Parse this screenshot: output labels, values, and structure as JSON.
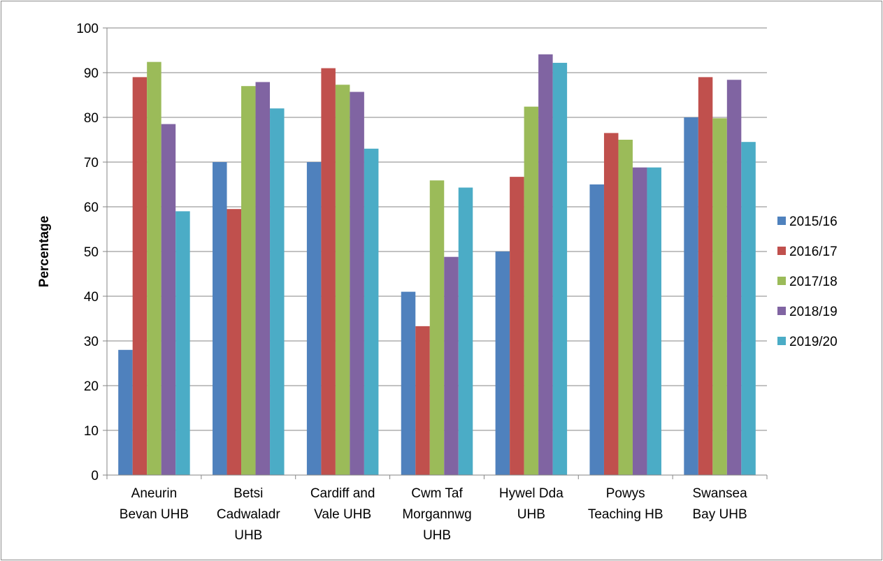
{
  "chart_data": {
    "type": "bar",
    "title": "",
    "xlabel": "",
    "ylabel": "Percentage",
    "ylim": [
      0,
      100
    ],
    "y_ticks": [
      "0",
      "10",
      "20",
      "30",
      "40",
      "50",
      "60",
      "70",
      "80",
      "90",
      "100"
    ],
    "grid": "horizontal",
    "legend_position": "right",
    "categories": [
      [
        "Aneurin",
        "Bevan UHB"
      ],
      [
        "Betsi",
        "Cadwaladr",
        "UHB"
      ],
      [
        "Cardiff and",
        "Vale UHB"
      ],
      [
        "Cwm Taf",
        "Morgannwg",
        "UHB"
      ],
      [
        "Hywel Dda",
        "UHB"
      ],
      [
        "Powys",
        "Teaching HB"
      ],
      [
        "Swansea",
        "Bay UHB"
      ]
    ],
    "series": [
      {
        "name": "2015/16",
        "color": "#4f81bd",
        "values": [
          28,
          70,
          70,
          41,
          50,
          65,
          80
        ]
      },
      {
        "name": "2016/17",
        "color": "#c0504d",
        "values": [
          89,
          59.5,
          91,
          33.3,
          66.7,
          76.5,
          89
        ]
      },
      {
        "name": "2017/18",
        "color": "#9bbb59",
        "values": [
          92.4,
          87,
          87.3,
          65.9,
          82.4,
          75,
          79.8
        ]
      },
      {
        "name": "2018/19",
        "color": "#8064a2",
        "values": [
          78.5,
          87.9,
          85.7,
          48.8,
          94.1,
          68.8,
          88.4
        ]
      },
      {
        "name": "2019/20",
        "color": "#4bacc6",
        "values": [
          59,
          82,
          73,
          64.3,
          92.2,
          68.8,
          74.5
        ]
      }
    ]
  }
}
